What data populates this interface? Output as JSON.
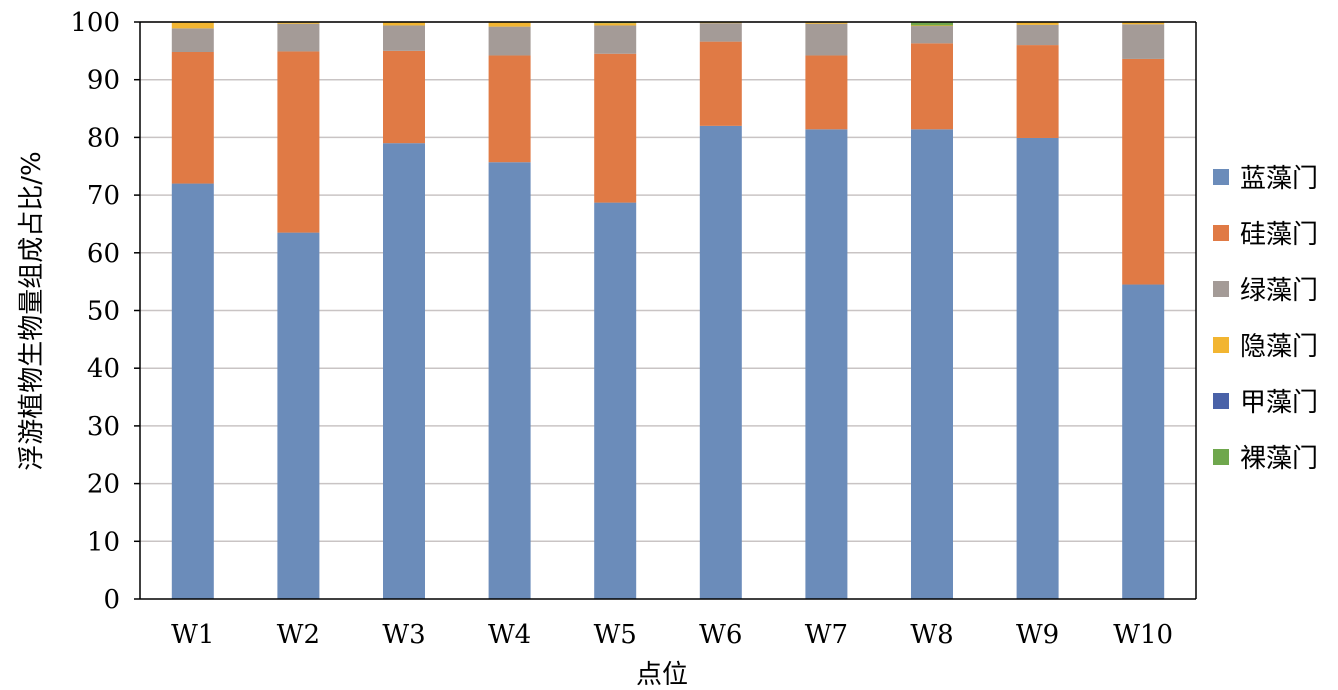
{
  "chart_data": {
    "type": "bar",
    "stacked": true,
    "title": "",
    "xlabel": "点位",
    "ylabel": "浮游植物生物量组成占比/%",
    "ylim": [
      0,
      100
    ],
    "yticks": [
      "0",
      "10",
      "20",
      "30",
      "40",
      "50",
      "60",
      "70",
      "80",
      "90",
      "100"
    ],
    "grid": true,
    "legend_position": "right",
    "categories": [
      "W1",
      "W2",
      "W3",
      "W4",
      "W5",
      "W6",
      "W7",
      "W8",
      "W9",
      "W10"
    ],
    "series": [
      {
        "name": "蓝藻门",
        "color": "#6B8CBA",
        "values": [
          72.0,
          63.5,
          79.0,
          75.7,
          68.7,
          82.0,
          81.4,
          81.4,
          79.9,
          54.5
        ]
      },
      {
        "name": "硅藻门",
        "color": "#E07A45",
        "values": [
          22.8,
          31.4,
          16.0,
          18.5,
          25.8,
          14.6,
          12.8,
          14.9,
          16.1,
          39.1
        ]
      },
      {
        "name": "绿藻门",
        "color": "#A49B97",
        "values": [
          4.1,
          4.8,
          4.4,
          5.0,
          4.9,
          3.2,
          5.5,
          3.0,
          3.5,
          6.0
        ]
      },
      {
        "name": "隐藻门",
        "color": "#F2B531",
        "values": [
          1.0,
          0.2,
          0.5,
          0.7,
          0.4,
          0.1,
          0.2,
          0.1,
          0.4,
          0.3
        ]
      },
      {
        "name": "甲藻门",
        "color": "#4A62A8",
        "values": [
          0.0,
          0.0,
          0.0,
          0.0,
          0.0,
          0.0,
          0.0,
          0.0,
          0.0,
          0.0
        ]
      },
      {
        "name": "裸藻门",
        "color": "#6FA74D",
        "values": [
          0.1,
          0.1,
          0.1,
          0.1,
          0.2,
          0.1,
          0.1,
          0.6,
          0.1,
          0.1
        ]
      }
    ]
  }
}
